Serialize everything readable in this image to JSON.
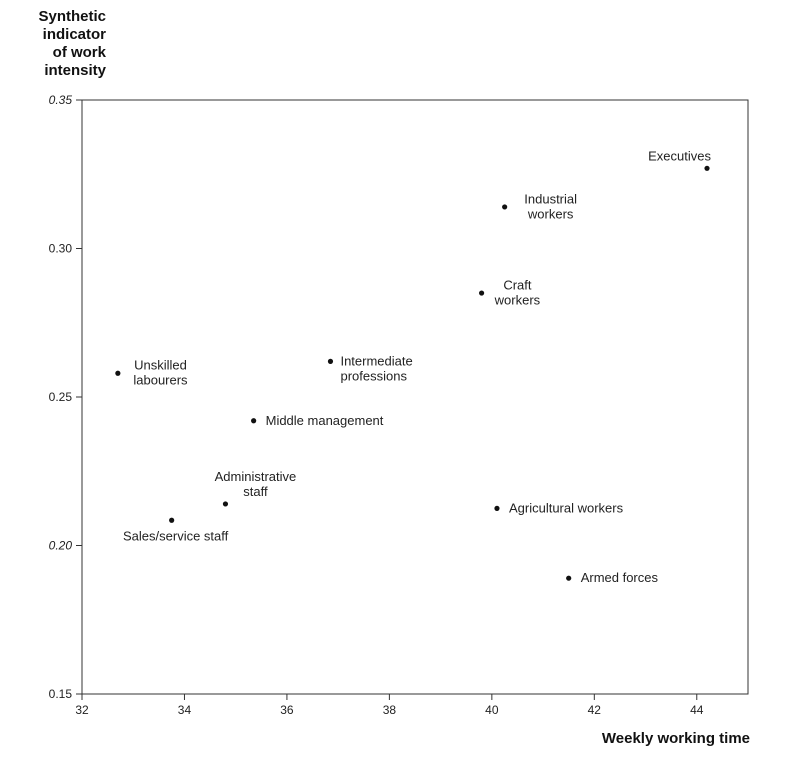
{
  "chart_data": {
    "type": "scatter",
    "ylabel_lines": [
      "Synthetic",
      "indicator",
      "of work",
      "intensity"
    ],
    "xlabel": "Weekly working time",
    "xlim": [
      32,
      45
    ],
    "ylim": [
      0.15,
      0.35
    ],
    "x_ticks": [
      {
        "value": 32,
        "label": "32"
      },
      {
        "value": 34,
        "label": "34"
      },
      {
        "value": 36,
        "label": "36"
      },
      {
        "value": 38,
        "label": "38"
      },
      {
        "value": 40,
        "label": "40"
      },
      {
        "value": 42,
        "label": "42"
      },
      {
        "value": 44,
        "label": "44"
      }
    ],
    "y_ticks": [
      {
        "value": 0.15,
        "label": "0.15",
        "italic": false
      },
      {
        "value": 0.2,
        "label": "0.20",
        "italic": true
      },
      {
        "value": 0.25,
        "label": "0.25",
        "italic": false
      },
      {
        "value": 0.3,
        "label": "0.30",
        "italic": false
      },
      {
        "value": 0.35,
        "label": "0.35",
        "italic": true
      }
    ],
    "grid": false,
    "points": [
      {
        "label_lines": [
          "Executives"
        ],
        "x": 44.2,
        "y": 0.327,
        "label_pos": "above-left"
      },
      {
        "label_lines": [
          "Industrial",
          "workers"
        ],
        "x": 40.25,
        "y": 0.314,
        "label_pos": "right"
      },
      {
        "label_lines": [
          "Craft",
          "workers"
        ],
        "x": 39.8,
        "y": 0.285,
        "label_pos": "right"
      },
      {
        "label_lines": [
          "Unskilled",
          "labourers"
        ],
        "x": 32.7,
        "y": 0.258,
        "label_pos": "right"
      },
      {
        "label_lines": [
          "Intermediate",
          "professions"
        ],
        "x": 36.85,
        "y": 0.262,
        "label_pos": "right-top"
      },
      {
        "label_lines": [
          "Middle management"
        ],
        "x": 35.35,
        "y": 0.242,
        "label_pos": "right"
      },
      {
        "label_lines": [
          "Administrative",
          "staff"
        ],
        "x": 34.8,
        "y": 0.214,
        "label_pos": "above"
      },
      {
        "label_lines": [
          "Sales/service staff"
        ],
        "x": 33.75,
        "y": 0.2085,
        "label_pos": "below"
      },
      {
        "label_lines": [
          "Agricultural workers"
        ],
        "x": 40.1,
        "y": 0.2125,
        "label_pos": "right"
      },
      {
        "label_lines": [
          "Armed forces"
        ],
        "x": 41.5,
        "y": 0.189,
        "label_pos": "right"
      }
    ]
  }
}
